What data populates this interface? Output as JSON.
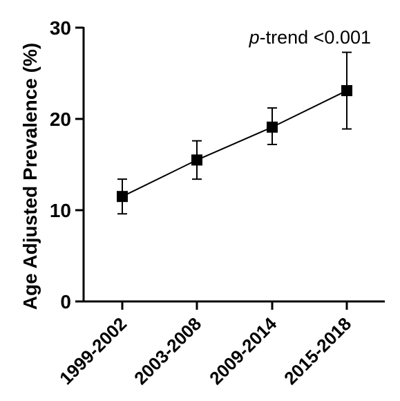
{
  "chart_data": {
    "type": "line",
    "categories": [
      "1999-2002",
      "2003-2008",
      "2009-2014",
      "2015-2018"
    ],
    "series": [
      {
        "values": [
          11.5,
          15.5,
          19.1,
          23.1
        ],
        "error_low": [
          9.6,
          13.4,
          17.2,
          18.9
        ],
        "error_high": [
          13.4,
          17.6,
          21.2,
          27.3
        ],
        "color": "#000000",
        "marker": "square"
      }
    ],
    "ylabel": "Age Adjusted  Prevalence (%)",
    "xlabel": "",
    "ylim": [
      0,
      30
    ],
    "yticks": [
      "0",
      "10",
      "20",
      "30"
    ],
    "annotation": {
      "italic_part": "p",
      "rest": "-trend <0.001"
    },
    "grid": false
  }
}
